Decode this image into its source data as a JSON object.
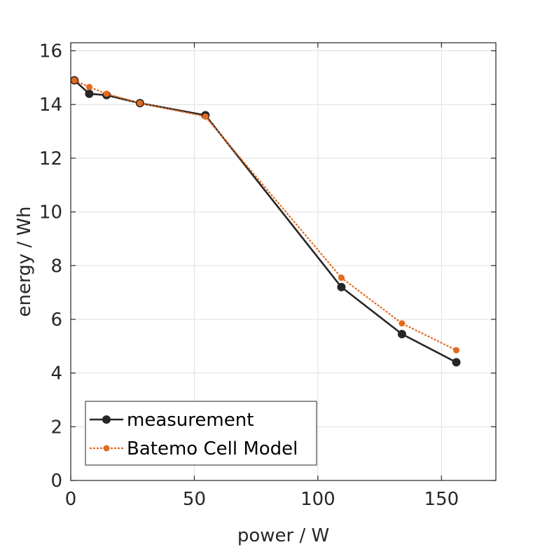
{
  "chart_data": {
    "type": "line",
    "title": "",
    "xlabel": "power / W",
    "ylabel": "energy / Wh",
    "xlim": [
      0,
      172
    ],
    "ylim": [
      0,
      16.3
    ],
    "xticks": [
      0,
      50,
      100,
      150
    ],
    "yticks": [
      0,
      2,
      4,
      6,
      8,
      10,
      12,
      14,
      16
    ],
    "xtick_labels": [
      "0",
      "50",
      "100",
      "150"
    ],
    "ytick_labels": [
      "0",
      "2",
      "4",
      "6",
      "8",
      "10",
      "12",
      "14",
      "16"
    ],
    "grid": true,
    "legend_position": "bottom-left",
    "series": [
      {
        "name": "measurement",
        "color": "#262626",
        "line_style": "solid",
        "marker": "circle",
        "x": [
          1.5,
          7.5,
          14.5,
          28,
          54.5,
          109.5,
          134,
          156
        ],
        "y": [
          14.9,
          14.4,
          14.35,
          14.05,
          13.6,
          7.2,
          5.45,
          4.4
        ]
      },
      {
        "name": "Batemo Cell Model",
        "color": "#e36a1e",
        "line_style": "dotted",
        "marker": "circle",
        "x": [
          1.5,
          7.5,
          14.5,
          28,
          54.5,
          109.5,
          134,
          156
        ],
        "y": [
          14.9,
          14.65,
          14.4,
          14.05,
          13.55,
          7.55,
          5.85,
          4.85
        ]
      }
    ]
  }
}
